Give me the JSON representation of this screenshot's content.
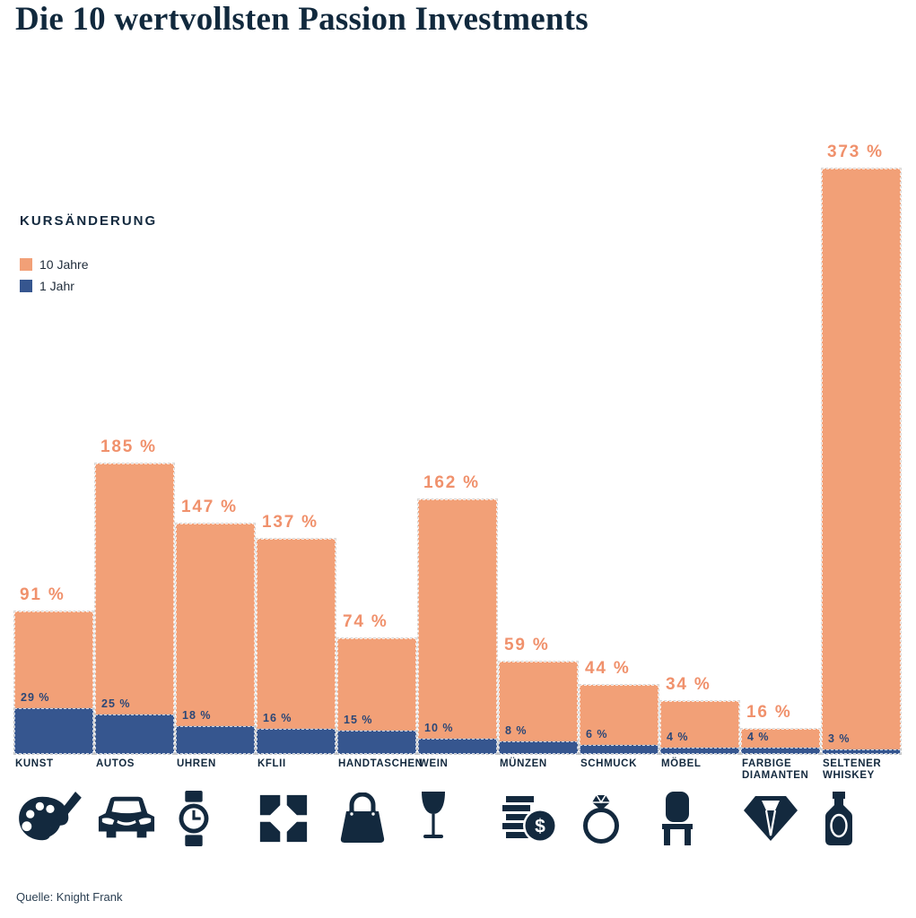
{
  "page": {
    "title": "Die 10 wertvollsten Passion Investments",
    "source": "Quelle: Knight Frank"
  },
  "legend": {
    "title": "KURSÄNDERUNG",
    "items": [
      {
        "label": "10 Jahre",
        "color": "#F2A077"
      },
      {
        "label": "1 Jahr",
        "color": "#36568F"
      }
    ]
  },
  "colors": {
    "orange_bar": "#F2A077",
    "orange_label": "#F0916C",
    "blue_bar": "#36568F",
    "blue_label": "#2B4777",
    "navy": "#13293E"
  },
  "chart_data": {
    "type": "bar",
    "title": "Die 10 wertvollsten Passion Investments",
    "unit": "%",
    "value_label_format": "{v} %",
    "categories": [
      "KUNST",
      "AUTOS",
      "UHREN",
      "KFLII",
      "HANDTASCHEN",
      "WEIN",
      "MÜNZEN",
      "SCHMUCK",
      "MÖBEL",
      "FARBIGE DIAMANTEN",
      "SELTENER WHISKEY"
    ],
    "icons": [
      "palette-brush-icon",
      "car-icon",
      "watch-icon",
      "kf-index-icon",
      "handbag-icon",
      "wine-glass-icon",
      "coins-icon",
      "ring-icon",
      "chair-icon",
      "diamond-icon",
      "whiskey-bottle-icon"
    ],
    "series": [
      {
        "name": "10 Jahre",
        "color": "#F2A077",
        "values": [
          91,
          185,
          147,
          137,
          74,
          162,
          59,
          44,
          34,
          16,
          373
        ]
      },
      {
        "name": "1 Jahr",
        "color": "#36568F",
        "values": [
          29,
          25,
          18,
          16,
          15,
          10,
          8,
          6,
          4,
          4,
          3
        ]
      }
    ],
    "ylim": [
      0,
      373
    ],
    "grid": false,
    "axes_shown": false,
    "legend_position": "upper-left"
  }
}
